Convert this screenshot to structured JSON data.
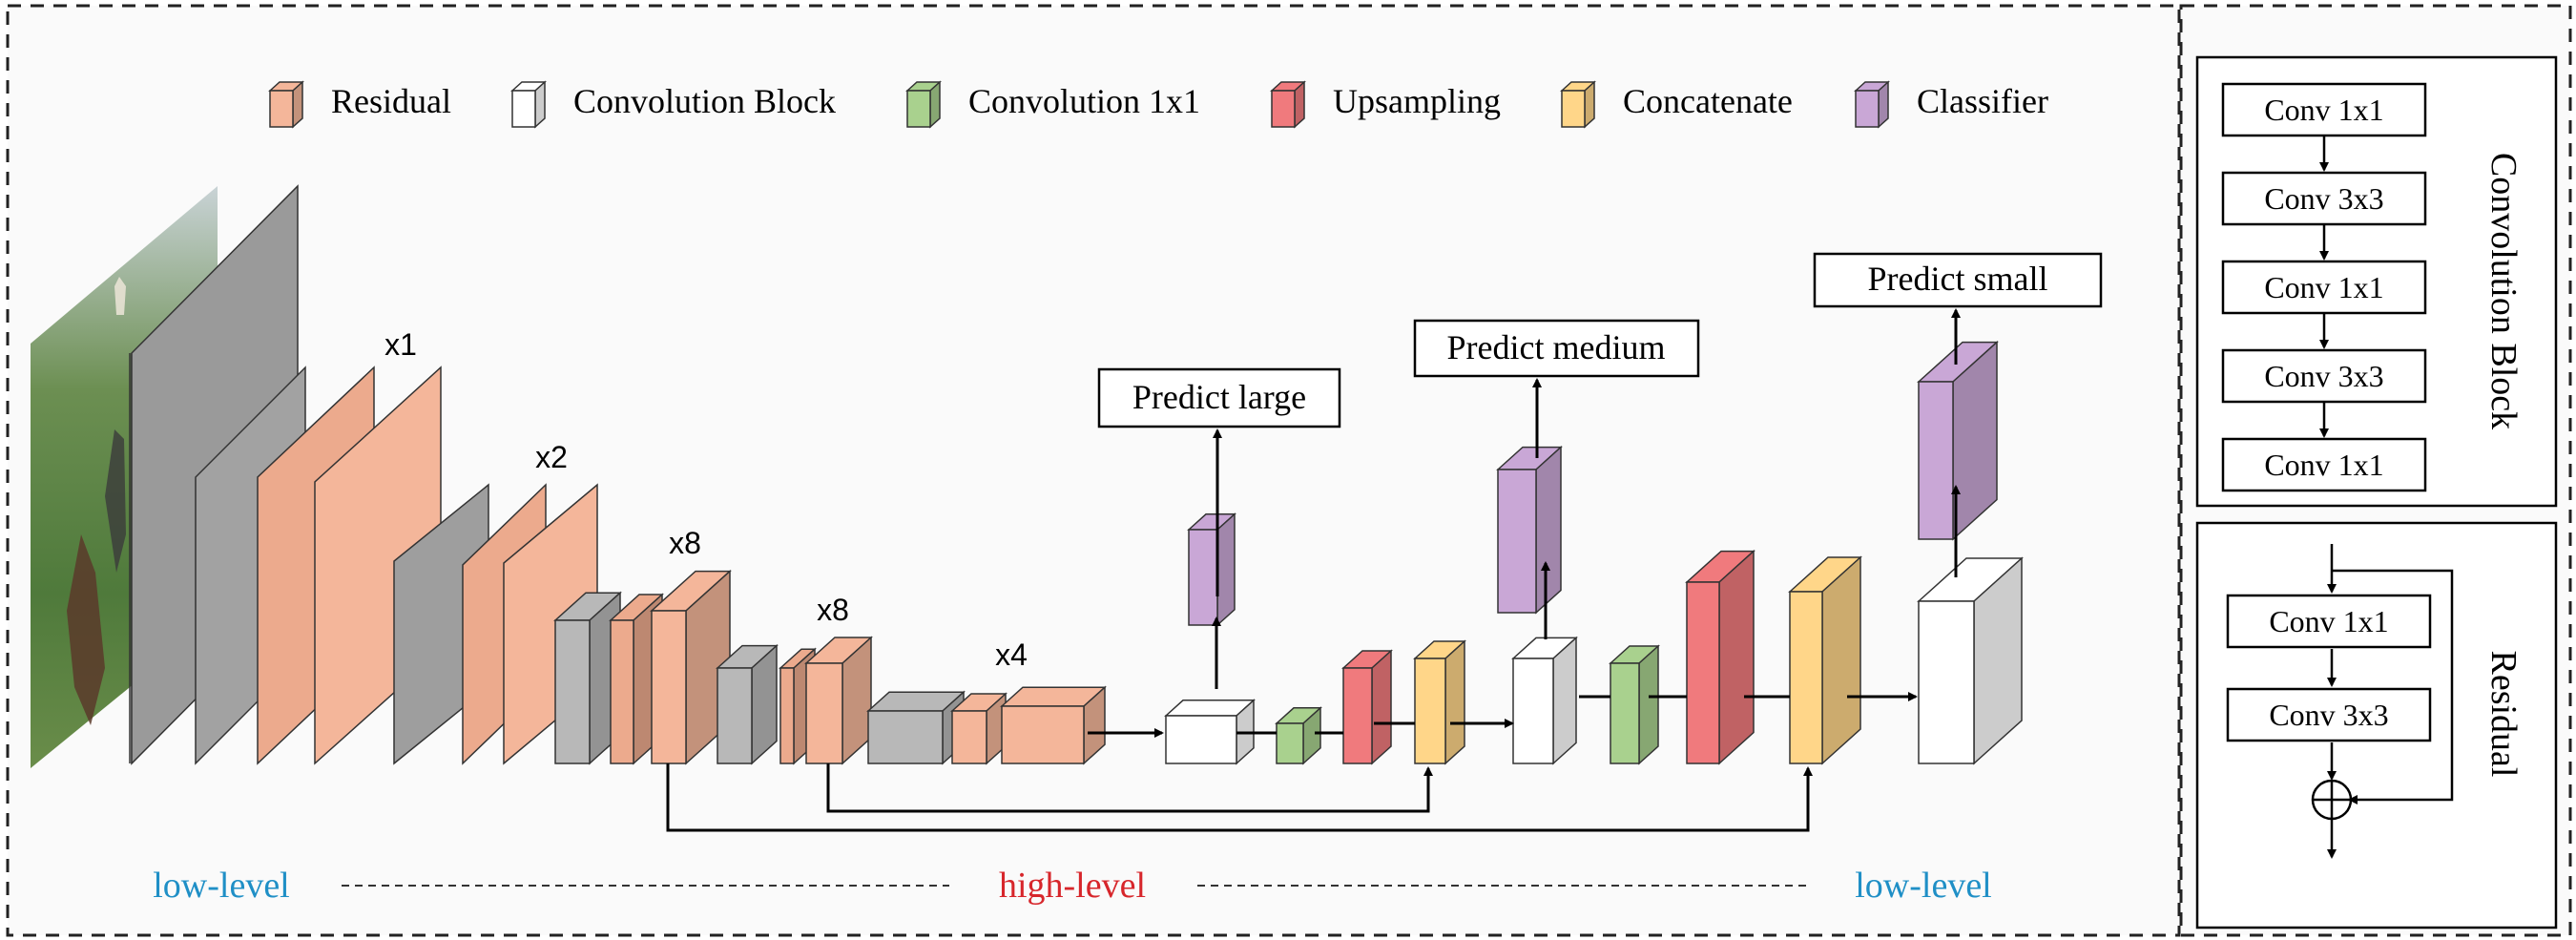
{
  "legend": {
    "items": [
      {
        "label": "Residual",
        "color": "#f4b69a"
      },
      {
        "label": "Convolution Block",
        "color": "#ffffff"
      },
      {
        "label": "Convolution 1x1",
        "color": "#a9d18e"
      },
      {
        "label": "Upsampling",
        "color": "#f07a7d"
      },
      {
        "label": "Concatenate",
        "color": "#ffd689"
      },
      {
        "label": "Classifier",
        "color": "#c9a7d6"
      }
    ]
  },
  "repeat_labels": {
    "r1": "x1",
    "r2": "x2",
    "r3": "x8",
    "r4": "x8",
    "r5": "x4"
  },
  "predictions": {
    "large": "Predict large",
    "medium": "Predict medium",
    "small": "Predict small"
  },
  "levels": {
    "left": "low-level",
    "middle": "high-level",
    "right": "low-level",
    "low_color": "#1f8fc6",
    "high_color": "#d7262b"
  },
  "conv_block_panel": {
    "title": "Convolution Block",
    "steps": [
      "Conv 1x1",
      "Conv 3x3",
      "Conv 1x1",
      "Conv 3x3",
      "Conv 1x1"
    ]
  },
  "residual_panel": {
    "title": "Residual",
    "steps": [
      "Conv 1x1",
      "Conv 3x3"
    ]
  },
  "colors": {
    "residual": "#f4b69a",
    "conv_block": "#ffffff",
    "conv1x1": "#a9d18e",
    "upsampling": "#f07a7d",
    "concatenate": "#ffd689",
    "classifier": "#c9a7d6",
    "gray": "#b8b8b8",
    "background": "#fafafa"
  }
}
